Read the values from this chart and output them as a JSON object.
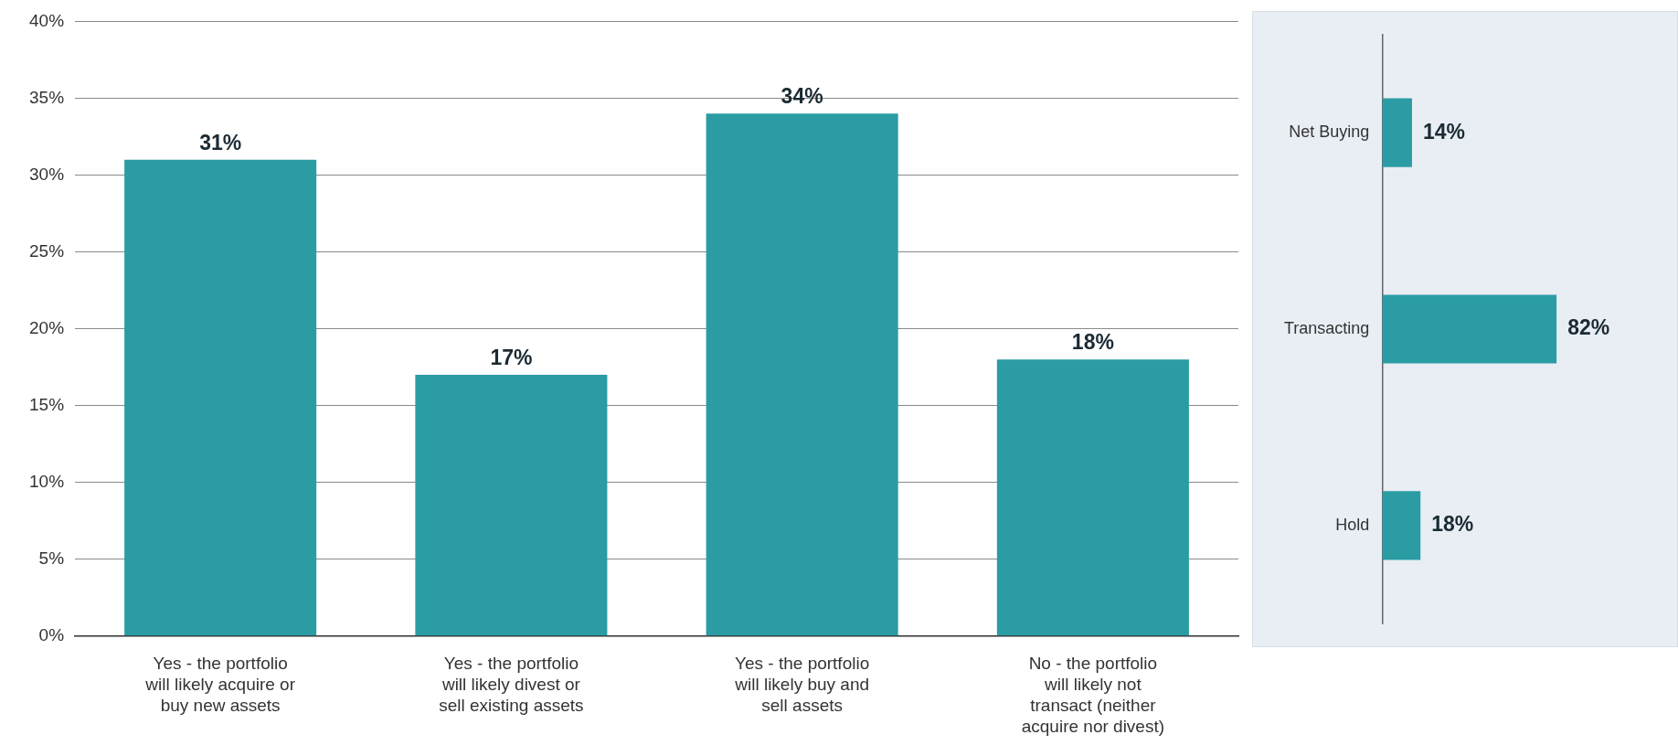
{
  "chart_data": [
    {
      "type": "bar",
      "categories": [
        "Yes - the portfolio will likely acquire or buy new assets",
        "Yes - the portfolio will likely divest or sell existing assets",
        "Yes - the portfolio will likely buy and sell assets",
        "No - the portfolio will likely not transact (neither acquire nor divest)"
      ],
      "values": [
        31,
        17,
        34,
        18
      ],
      "value_labels": [
        "31%",
        "17%",
        "34%",
        "18%"
      ],
      "color": "#2b9ca4",
      "ylim": [
        0,
        40
      ],
      "yticks": [
        {
          "value": 0,
          "label": "0%"
        },
        {
          "value": 5,
          "label": "5%"
        },
        {
          "value": 10,
          "label": "10%"
        },
        {
          "value": 15,
          "label": "15%"
        },
        {
          "value": 20,
          "label": "20%"
        },
        {
          "value": 25,
          "label": "25%"
        },
        {
          "value": 30,
          "label": "30%"
        },
        {
          "value": 35,
          "label": "35%"
        },
        {
          "value": 40,
          "label": "40%"
        }
      ],
      "grid": "y",
      "legend": false
    },
    {
      "type": "bar",
      "orientation": "horizontal",
      "categories": [
        "Net Buying",
        "Transacting",
        "Hold"
      ],
      "values": [
        14,
        82,
        18
      ],
      "value_labels": [
        "14%",
        "82%",
        "18%"
      ],
      "color": "#2b9ca4",
      "tick_labels": "y",
      "legend": false
    }
  ]
}
